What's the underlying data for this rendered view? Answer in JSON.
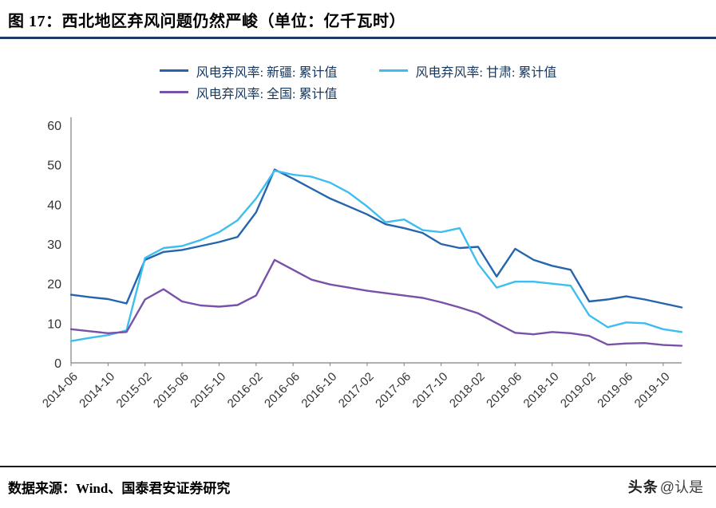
{
  "header": {
    "title": "图 17：西北地区弃风问题仍然严峻（单位：亿千瓦时）"
  },
  "footer": {
    "source": "数据来源：Wind、国泰君安证券研究",
    "watermark_brand": "头条",
    "watermark_handle": "@认是"
  },
  "colors": {
    "header_rule": "#1a3a6b",
    "legend_text": "#17375e"
  },
  "chart_data": {
    "type": "line",
    "title": "西北地区弃风问题仍然严峻（单位：亿千瓦时）",
    "xlabel": "",
    "ylabel": "",
    "ylim": [
      0,
      60
    ],
    "y_ticks": [
      0,
      10,
      20,
      30,
      40,
      50,
      60
    ],
    "grid": false,
    "legend_position": "top",
    "axis_color": "#808080",
    "tick_label_color": "#333333",
    "x": [
      "2014-06",
      "2014-08",
      "2014-10",
      "2014-12",
      "2015-02",
      "2015-04",
      "2015-06",
      "2015-08",
      "2015-10",
      "2015-12",
      "2016-02",
      "2016-04",
      "2016-06",
      "2016-08",
      "2016-10",
      "2016-12",
      "2017-02",
      "2017-04",
      "2017-06",
      "2017-08",
      "2017-10",
      "2017-12",
      "2018-02",
      "2018-04",
      "2018-06",
      "2018-08",
      "2018-10",
      "2018-12",
      "2019-02",
      "2019-04",
      "2019-06",
      "2019-08",
      "2019-10",
      "2019-12"
    ],
    "x_tick_labels": [
      "2014-06",
      "2014-10",
      "2015-02",
      "2015-06",
      "2015-10",
      "2016-02",
      "2016-06",
      "2016-10",
      "2017-02",
      "2017-06",
      "2017-10",
      "2018-02",
      "2018-06",
      "2018-10",
      "2019-02",
      "2019-06",
      "2019-10"
    ],
    "series": [
      {
        "name": "风电弃风率: 新疆: 累计值",
        "color": "#2565ae",
        "values": [
          17.2,
          16.6,
          16.1,
          15.0,
          26.0,
          28.0,
          28.5,
          29.5,
          30.5,
          31.8,
          38.0,
          48.8,
          46.5,
          44.0,
          41.5,
          39.5,
          37.5,
          35.0,
          34.0,
          32.8,
          30.0,
          29.0,
          29.3,
          21.8,
          28.8,
          26.0,
          24.5,
          23.5,
          15.5,
          16.0,
          16.8,
          16.0,
          15.0,
          14.0
        ]
      },
      {
        "name": "风电弃风率: 甘肃: 累计值",
        "color": "#3ebdf0",
        "values": [
          5.5,
          6.3,
          7.0,
          8.2,
          26.5,
          29.0,
          29.5,
          31.0,
          33.0,
          36.0,
          41.5,
          48.5,
          47.5,
          47.0,
          45.5,
          43.0,
          39.5,
          35.5,
          36.2,
          33.5,
          33.0,
          34.0,
          25.0,
          19.0,
          20.5,
          20.5,
          20.0,
          19.5,
          12.0,
          9.0,
          10.2,
          10.0,
          8.5,
          7.8
        ]
      },
      {
        "name": "风电弃风率: 全国: 累计值",
        "color": "#7851a9",
        "values": [
          8.5,
          8.0,
          7.5,
          7.8,
          16.0,
          18.6,
          15.5,
          14.5,
          14.2,
          14.6,
          17.0,
          26.0,
          23.5,
          21.0,
          19.8,
          19.0,
          18.2,
          17.6,
          17.0,
          16.4,
          15.3,
          14.0,
          12.5,
          10.0,
          7.6,
          7.2,
          7.8,
          7.5,
          6.8,
          4.6,
          4.9,
          5.0,
          4.5,
          4.3
        ]
      }
    ]
  }
}
